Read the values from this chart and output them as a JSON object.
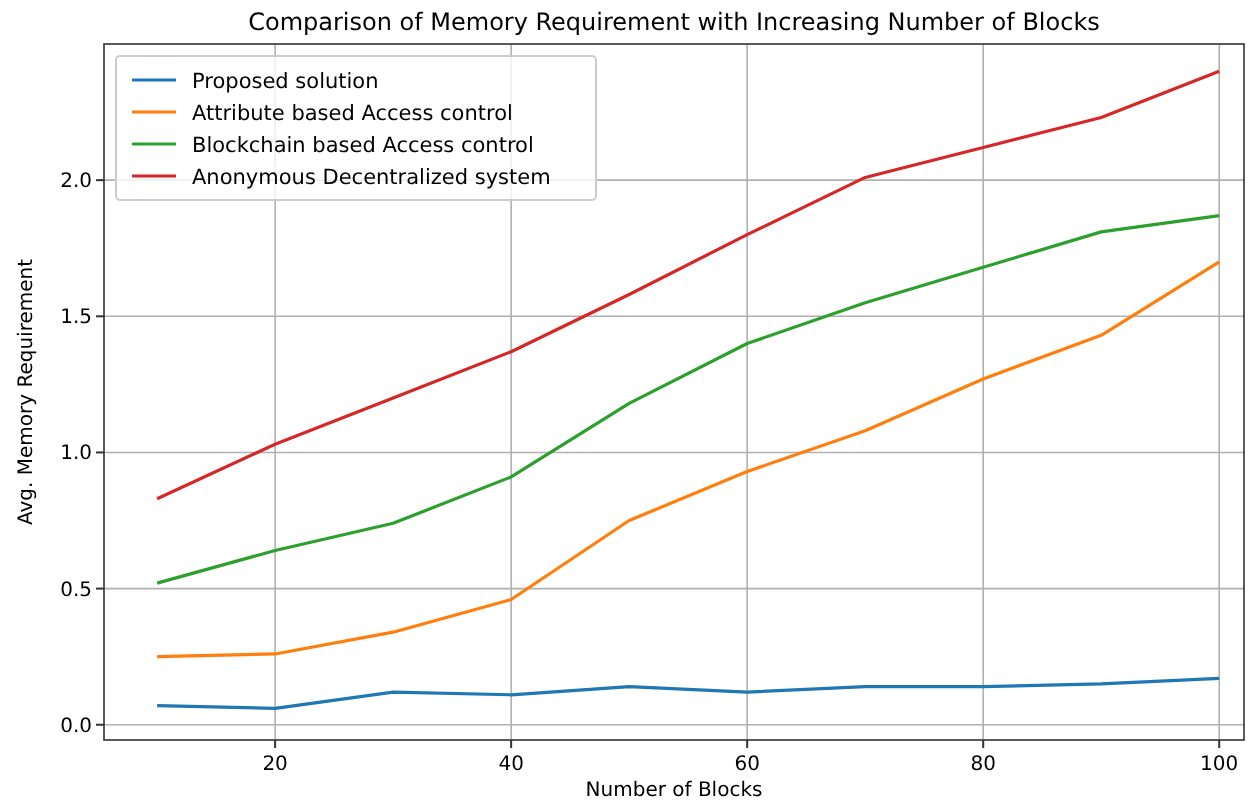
{
  "chart_data": {
    "type": "line",
    "title": "Comparison of Memory Requirement with Increasing Number of Blocks",
    "xlabel": "Number of Blocks",
    "ylabel": "Avg. Memory Requirement",
    "x": [
      10,
      20,
      30,
      40,
      50,
      60,
      70,
      80,
      90,
      100
    ],
    "series": [
      {
        "name": "Proposed solution",
        "color": "#1f77b4",
        "values": [
          0.07,
          0.06,
          0.12,
          0.11,
          0.14,
          0.12,
          0.14,
          0.14,
          0.15,
          0.17
        ]
      },
      {
        "name": "Attribute based Access control",
        "color": "#ff7f0e",
        "values": [
          0.25,
          0.26,
          0.34,
          0.46,
          0.75,
          0.93,
          1.08,
          1.27,
          1.43,
          1.7
        ]
      },
      {
        "name": "Blockchain based Access control",
        "color": "#2ca02c",
        "values": [
          0.52,
          0.64,
          0.74,
          0.91,
          1.18,
          1.4,
          1.55,
          1.68,
          1.81,
          1.87
        ]
      },
      {
        "name": "Anonymous Decentralized system",
        "color": "#d62728",
        "values": [
          0.83,
          1.03,
          1.2,
          1.37,
          1.58,
          1.8,
          2.01,
          2.12,
          2.23,
          2.4
        ]
      }
    ],
    "xlim": [
      5.5,
      102.1
    ],
    "ylim": [
      -0.056,
      2.5
    ],
    "xticks": [
      20,
      40,
      60,
      80,
      100
    ],
    "yticks": [
      {
        "value": 0,
        "label": "0.0"
      },
      {
        "value": 0.5,
        "label": "0.5"
      },
      {
        "value": 1,
        "label": "1.0"
      },
      {
        "value": 1.5,
        "label": "1.5"
      },
      {
        "value": 2,
        "label": "2.0"
      }
    ],
    "grid": true,
    "legend": "top left"
  }
}
